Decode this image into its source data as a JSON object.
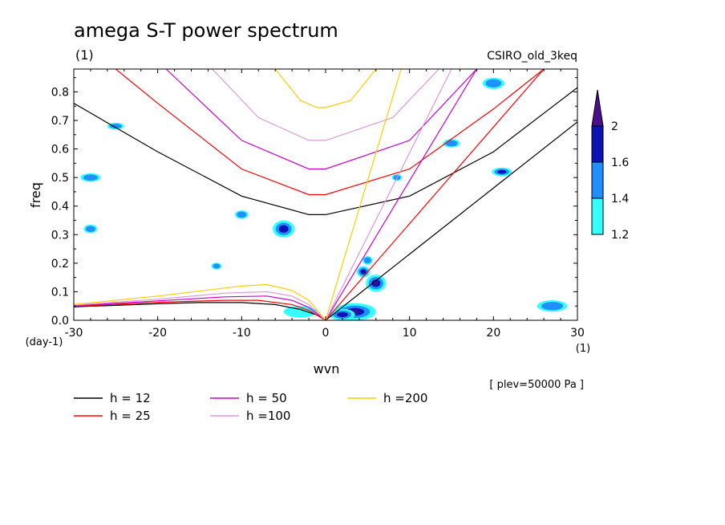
{
  "chart_data": {
    "type": "heatmap",
    "title": "amega S-T power spectrum",
    "subtitle": "(1)",
    "right_title": "CSIRO_old_3keq",
    "xlabel": "wvn",
    "ylabel": "freq",
    "x_unit": "(1)",
    "y_unit": "(day-1)",
    "xlim": [
      -30,
      30
    ],
    "ylim": [
      0,
      0.88
    ],
    "x_ticks": [
      -30,
      -20,
      -10,
      0,
      10,
      20,
      30
    ],
    "y_ticks": [
      0.0,
      0.1,
      0.2,
      0.3,
      0.4,
      0.5,
      0.6,
      0.7,
      0.8
    ],
    "x_tick_labels": [
      "-30",
      "-20",
      "-10",
      "0",
      "10",
      "20",
      "30"
    ],
    "y_tick_labels": [
      "0.0",
      "0.1",
      "0.2",
      "0.3",
      "0.4",
      "0.5",
      "0.6",
      "0.7",
      "0.8"
    ],
    "annotation": "[ plev=50000 Pa ]",
    "colorbar": {
      "levels": [
        1.2,
        1.4,
        1.6,
        2
      ],
      "labels": [
        "1.2",
        "1.4",
        "1.6",
        "2"
      ],
      "colors": [
        "#33ffff",
        "#1e90ff",
        "#0a14b4",
        "#4b0f8c"
      ]
    },
    "dispersion_curves": [
      {
        "name": "h = 12",
        "color": "#000000",
        "kelvin": [
          [
            0,
            0
          ],
          [
            30,
            0.695
          ]
        ],
        "er": [
          [
            -30,
            0.047
          ],
          [
            -20,
            0.058
          ],
          [
            -15,
            0.062
          ],
          [
            -10,
            0.062
          ],
          [
            -6,
            0.055
          ],
          [
            -3,
            0.038
          ],
          [
            -1,
            0.018
          ],
          [
            0,
            0
          ]
        ],
        "ig": [
          [
            -30,
            0.76
          ],
          [
            -20,
            0.59
          ],
          [
            -10,
            0.435
          ],
          [
            -2,
            0.37
          ],
          [
            0,
            0.37
          ],
          [
            10,
            0.435
          ],
          [
            20,
            0.59
          ],
          [
            30,
            0.815
          ]
        ]
      },
      {
        "name": "h = 25",
        "color": "#ff0000",
        "kelvin": [
          [
            0,
            0
          ],
          [
            26,
            0.88
          ]
        ],
        "er": [
          [
            -30,
            0.049
          ],
          [
            -20,
            0.063
          ],
          [
            -12,
            0.07
          ],
          [
            -8,
            0.07
          ],
          [
            -4,
            0.055
          ],
          [
            -2,
            0.035
          ],
          [
            0,
            0
          ]
        ],
        "ig": [
          [
            -25,
            0.88
          ],
          [
            -20,
            0.76
          ],
          [
            -10,
            0.53
          ],
          [
            -2,
            0.44
          ],
          [
            0,
            0.44
          ],
          [
            10,
            0.53
          ],
          [
            20,
            0.74
          ],
          [
            26,
            0.88
          ]
        ]
      },
      {
        "name": "h = 50",
        "color": "#cc00cc",
        "kelvin": [
          [
            0,
            0
          ],
          [
            18,
            0.88
          ]
        ],
        "er": [
          [
            -30,
            0.051
          ],
          [
            -20,
            0.068
          ],
          [
            -12,
            0.082
          ],
          [
            -7,
            0.085
          ],
          [
            -4,
            0.07
          ],
          [
            -2,
            0.045
          ],
          [
            0,
            0
          ]
        ],
        "ig": [
          [
            -19,
            0.88
          ],
          [
            -10,
            0.63
          ],
          [
            -2,
            0.53
          ],
          [
            0,
            0.53
          ],
          [
            10,
            0.63
          ],
          [
            18,
            0.88
          ]
        ]
      },
      {
        "name": "h =100",
        "color": "#dd99dd",
        "kelvin": [
          [
            0,
            0
          ],
          [
            15,
            0.88
          ]
        ],
        "er": [
          [
            -30,
            0.053
          ],
          [
            -20,
            0.074
          ],
          [
            -12,
            0.095
          ],
          [
            -7,
            0.1
          ],
          [
            -4,
            0.085
          ],
          [
            -2,
            0.055
          ],
          [
            0,
            0
          ]
        ],
        "ig": [
          [
            -13.5,
            0.88
          ],
          [
            -8,
            0.71
          ],
          [
            -2,
            0.63
          ],
          [
            0,
            0.63
          ],
          [
            8,
            0.71
          ],
          [
            13.5,
            0.88
          ]
        ]
      },
      {
        "name": "h =200",
        "color": "#ffcc00",
        "kelvin": [
          [
            0,
            0
          ],
          [
            9,
            0.88
          ]
        ],
        "er": [
          [
            -30,
            0.055
          ],
          [
            -20,
            0.085
          ],
          [
            -10,
            0.12
          ],
          [
            -7,
            0.125
          ],
          [
            -4,
            0.105
          ],
          [
            -2,
            0.07
          ],
          [
            0,
            0
          ]
        ],
        "ig": [
          [
            -6,
            0.88
          ],
          [
            -3,
            0.77
          ],
          [
            -1,
            0.745
          ],
          [
            0,
            0.745
          ],
          [
            3,
            0.77
          ],
          [
            6,
            0.88
          ]
        ]
      }
    ],
    "contour_patches": [
      {
        "x": 3.5,
        "y": 0.03,
        "rx": 2.5,
        "ry": 0.03,
        "level": 3
      },
      {
        "x": 6,
        "y": 0.13,
        "rx": 1.2,
        "ry": 0.03,
        "level": 3
      },
      {
        "x": 4.5,
        "y": 0.17,
        "rx": 0.8,
        "ry": 0.02,
        "level": 2
      },
      {
        "x": 5,
        "y": 0.21,
        "rx": 0.6,
        "ry": 0.015,
        "level": 1
      },
      {
        "x": 2,
        "y": 0.02,
        "rx": 1.5,
        "ry": 0.02,
        "level": 2
      },
      {
        "x": -3,
        "y": 0.03,
        "rx": 2,
        "ry": 0.02,
        "level": 0
      },
      {
        "x": -28,
        "y": 0.5,
        "rx": 1.2,
        "ry": 0.015,
        "level": 1
      },
      {
        "x": -10,
        "y": 0.37,
        "rx": 0.8,
        "ry": 0.015,
        "level": 1
      },
      {
        "x": -5,
        "y": 0.32,
        "rx": 1.3,
        "ry": 0.03,
        "level": 2
      },
      {
        "x": 27,
        "y": 0.05,
        "rx": 1.8,
        "ry": 0.02,
        "level": 1
      },
      {
        "x": 21,
        "y": 0.52,
        "rx": 1.2,
        "ry": 0.015,
        "level": 2
      },
      {
        "x": 15,
        "y": 0.62,
        "rx": 1,
        "ry": 0.015,
        "level": 1
      },
      {
        "x": 20,
        "y": 0.83,
        "rx": 1.3,
        "ry": 0.02,
        "level": 1
      },
      {
        "x": -25,
        "y": 0.68,
        "rx": 1,
        "ry": 0.012,
        "level": 1
      },
      {
        "x": -28,
        "y": 0.32,
        "rx": 0.8,
        "ry": 0.015,
        "level": 1
      },
      {
        "x": 8.5,
        "y": 0.5,
        "rx": 0.6,
        "ry": 0.012,
        "level": 1
      },
      {
        "x": -13,
        "y": 0.19,
        "rx": 0.6,
        "ry": 0.012,
        "level": 1
      }
    ]
  },
  "legend": [
    {
      "label": "h = 12",
      "color": "#000000"
    },
    {
      "label": "h = 25",
      "color": "#ff0000"
    },
    {
      "label": "h = 50",
      "color": "#cc00cc"
    },
    {
      "label": "h =100",
      "color": "#dd99dd"
    },
    {
      "label": "h =200",
      "color": "#ffcc00"
    }
  ]
}
